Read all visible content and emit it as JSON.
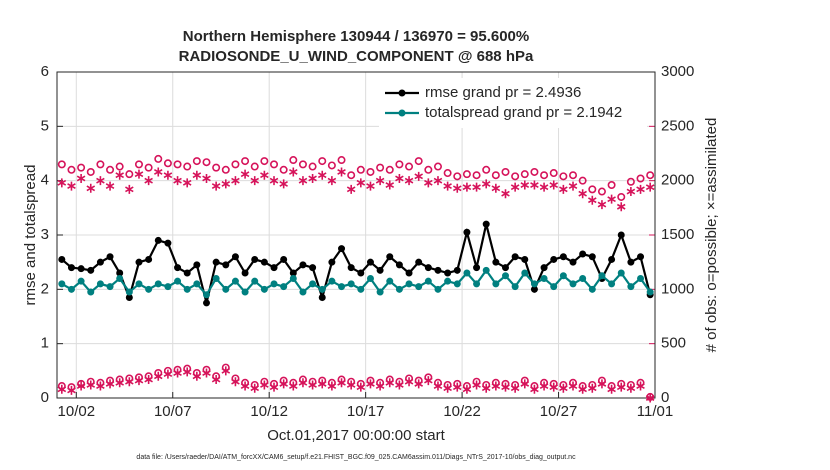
{
  "chart_data": {
    "type": "line",
    "title": "Northern Hemisphere 130944 / 136970 = 95.600%",
    "subtitle": "RADIOSONDE_U_WIND_COMPONENT @ 688 hPa",
    "xlabel": "Oct.01,2017 00:00:00 start",
    "ylabel": "rmse and totalspread",
    "y2label": "# of obs: o=possible; ×=assimilated",
    "footnote": "data file: /Users/raeder/DAI/ATM_forcXX/CAM6_setup/f.e21.FHIST_BGC.f09_025.CAM6assim.011/Diags_NTrS_2017-10/obs_diag_output.nc",
    "legend": "upper right",
    "legend_color": "#1a5fd6",
    "grid": true,
    "xlim": [
      0,
      31
    ],
    "xticks": [
      {
        "value": 1,
        "label": "10/02"
      },
      {
        "value": 6,
        "label": "10/07"
      },
      {
        "value": 11,
        "label": "10/12"
      },
      {
        "value": 16,
        "label": "10/17"
      },
      {
        "value": 21,
        "label": "10/22"
      },
      {
        "value": 26,
        "label": "10/27"
      },
      {
        "value": 31,
        "label": "11/01"
      }
    ],
    "ylim": [
      0,
      6
    ],
    "yticks": [
      0,
      1,
      2,
      3,
      4,
      5,
      6
    ],
    "y2lim": [
      0,
      3000
    ],
    "y2ticks": [
      0,
      500,
      1000,
      1500,
      2000,
      2500,
      3000
    ],
    "y2color": "#d6135a",
    "x": [
      0.25,
      0.75,
      1.25,
      1.75,
      2.25,
      2.75,
      3.25,
      3.75,
      4.25,
      4.75,
      5.25,
      5.75,
      6.25,
      6.75,
      7.25,
      7.75,
      8.25,
      8.75,
      9.25,
      9.75,
      10.25,
      10.75,
      11.25,
      11.75,
      12.25,
      12.75,
      13.25,
      13.75,
      14.25,
      14.75,
      15.25,
      15.75,
      16.25,
      16.75,
      17.25,
      17.75,
      18.25,
      18.75,
      19.25,
      19.75,
      20.25,
      20.75,
      21.25,
      21.75,
      22.25,
      22.75,
      23.25,
      23.75,
      24.25,
      24.75,
      25.25,
      25.75,
      26.25,
      26.75,
      27.25,
      27.75,
      28.25,
      28.75,
      29.25,
      29.75,
      30.25,
      30.75
    ],
    "series": [
      {
        "name": "rmse grand pr = 2.4936",
        "color": "#000000",
        "marker": "filled-circle",
        "line": true,
        "values": [
          2.55,
          2.4,
          2.38,
          2.35,
          2.5,
          2.6,
          2.3,
          1.85,
          2.5,
          2.55,
          2.9,
          2.85,
          2.4,
          2.3,
          2.45,
          1.75,
          2.5,
          2.45,
          2.6,
          2.3,
          2.55,
          2.5,
          2.4,
          2.55,
          2.3,
          2.45,
          2.4,
          1.85,
          2.5,
          2.75,
          2.4,
          2.3,
          2.5,
          2.35,
          2.6,
          2.45,
          2.3,
          2.5,
          2.4,
          2.35,
          2.3,
          2.35,
          3.05,
          2.4,
          3.2,
          2.5,
          2.4,
          2.6,
          2.55,
          2.0,
          2.4,
          2.55,
          2.6,
          2.5,
          2.65,
          2.6,
          2.2,
          2.55,
          3.0,
          2.5,
          2.6,
          1.9
        ]
      },
      {
        "name": "totalspread grand pr = 2.1942",
        "color": "#008080",
        "marker": "filled-circle",
        "line": true,
        "values": [
          2.1,
          2.0,
          2.15,
          1.95,
          2.1,
          2.05,
          2.2,
          1.95,
          2.1,
          2.0,
          2.1,
          2.05,
          2.15,
          2.0,
          2.1,
          1.9,
          2.2,
          2.0,
          2.15,
          1.95,
          2.15,
          2.0,
          2.1,
          2.05,
          2.2,
          1.95,
          2.1,
          2.0,
          2.15,
          2.05,
          2.1,
          2.0,
          2.2,
          1.95,
          2.15,
          2.0,
          2.1,
          2.05,
          2.15,
          2.0,
          2.15,
          2.1,
          2.3,
          2.1,
          2.35,
          2.1,
          2.25,
          2.05,
          2.3,
          2.1,
          2.2,
          2.05,
          2.25,
          2.1,
          2.2,
          2.0,
          2.25,
          2.1,
          2.3,
          2.05,
          2.2,
          1.95
        ]
      },
      {
        "color": "#d6135a",
        "marker": "open-circle",
        "line": false,
        "axis": "y2",
        "values": [
          2150,
          2100,
          2120,
          2080,
          2150,
          2100,
          2130,
          2060,
          2150,
          2120,
          2200,
          2160,
          2150,
          2130,
          2180,
          2170,
          2120,
          2100,
          2150,
          2180,
          2130,
          2180,
          2150,
          2100,
          2190,
          2150,
          2130,
          2180,
          2140,
          2190,
          2050,
          2100,
          2080,
          2120,
          2100,
          2150,
          2130,
          2180,
          2100,
          2130,
          2070,
          2040,
          2060,
          2050,
          2100,
          2050,
          2080,
          2040,
          2060,
          2080,
          2050,
          2070,
          2040,
          2050,
          2000,
          1920,
          1900,
          1960,
          1850,
          1990,
          2020,
          2050
        ]
      },
      {
        "color": "#d6135a",
        "marker": "asterisk",
        "line": false,
        "axis": "y2",
        "values": [
          1980,
          1950,
          2020,
          1930,
          2000,
          1950,
          2050,
          1920,
          2060,
          2000,
          2080,
          2050,
          2000,
          1980,
          2050,
          2020,
          1950,
          1970,
          2000,
          2060,
          2000,
          2050,
          2000,
          1970,
          2080,
          2000,
          2020,
          2050,
          2000,
          2080,
          1920,
          1980,
          1950,
          2000,
          1960,
          2020,
          2000,
          2040,
          1980,
          2000,
          1950,
          1930,
          1940,
          1940,
          1970,
          1930,
          1880,
          1940,
          1960,
          1960,
          1940,
          1960,
          1920,
          1950,
          1880,
          1820,
          1780,
          1830,
          1760,
          1900,
          1920,
          1940
        ]
      },
      {
        "color": "#d6135a",
        "marker": "open-circle",
        "line": false,
        "axis": "y2",
        "values": [
          110,
          100,
          130,
          150,
          140,
          160,
          170,
          180,
          190,
          200,
          230,
          250,
          260,
          270,
          230,
          260,
          200,
          280,
          180,
          140,
          120,
          150,
          130,
          160,
          140,
          170,
          150,
          160,
          140,
          170,
          150,
          130,
          160,
          140,
          170,
          150,
          180,
          160,
          190,
          140,
          120,
          130,
          110,
          150,
          120,
          140,
          130,
          120,
          160,
          110,
          140,
          130,
          120,
          140,
          110,
          120,
          160,
          110,
          130,
          120,
          140,
          10
        ]
      },
      {
        "color": "#d6135a",
        "marker": "asterisk",
        "line": false,
        "axis": "y2",
        "values": [
          80,
          70,
          110,
          120,
          110,
          130,
          140,
          150,
          160,
          170,
          200,
          220,
          230,
          240,
          200,
          230,
          170,
          250,
          150,
          110,
          90,
          120,
          100,
          130,
          110,
          140,
          120,
          130,
          110,
          140,
          120,
          100,
          130,
          110,
          140,
          120,
          150,
          130,
          160,
          110,
          90,
          100,
          80,
          120,
          90,
          110,
          100,
          90,
          130,
          80,
          110,
          100,
          90,
          110,
          80,
          90,
          130,
          80,
          100,
          90,
          110,
          0
        ]
      }
    ]
  }
}
